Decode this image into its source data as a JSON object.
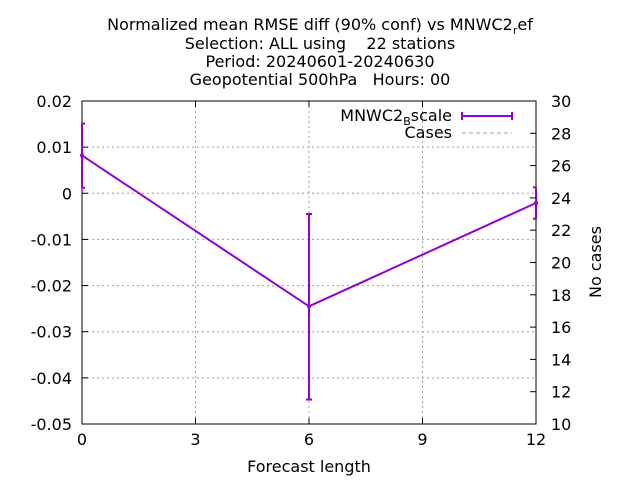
{
  "chart_data": {
    "type": "line",
    "title_lines": [
      "Normalized mean RMSE diff (90% conf) vs MNWC2_ref",
      "Selection: ALL using    22 stations",
      "Period: 20240601-20240630",
      "Geopotential 500hPa   Hours: 00"
    ],
    "xlabel": "Forecast length",
    "ylabel": "",
    "y2label": "No cases",
    "xlim": [
      0,
      12
    ],
    "ylim": [
      -0.05,
      0.02
    ],
    "y2lim": [
      10,
      30
    ],
    "x_ticks": [
      "0",
      "3",
      "6",
      "9",
      "12"
    ],
    "y_ticks": [
      "0.02",
      "0.01",
      "0",
      "-0.01",
      "-0.02",
      "-0.03",
      "-0.04",
      "-0.05"
    ],
    "y2_ticks": [
      "30",
      "28",
      "26",
      "24",
      "22",
      "20",
      "18",
      "16",
      "14",
      "12",
      "10"
    ],
    "grid": true,
    "legend_position": "top-right",
    "series": [
      {
        "name": "MNWC2_Bscale",
        "legend_main": "MNWC2",
        "legend_sub": "B",
        "legend_tail": "scale",
        "color": "#9400d3",
        "x": [
          0,
          6,
          12
        ],
        "y": [
          0.0082,
          -0.0245,
          -0.0021
        ],
        "err_low": [
          0.0012,
          -0.0447,
          -0.0055
        ],
        "err_high": [
          0.0151,
          -0.0045,
          0.0013
        ]
      },
      {
        "name": "Cases",
        "color": "#a0a0a0",
        "x": [
          0,
          6,
          12
        ],
        "y2": [
          30,
          30,
          30
        ]
      }
    ]
  }
}
